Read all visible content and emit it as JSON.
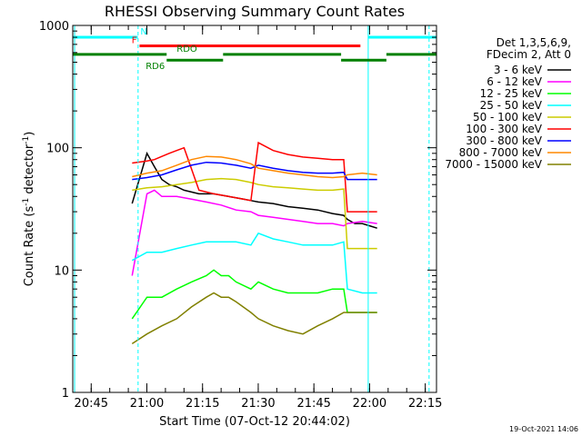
{
  "chart_data": {
    "type": "line",
    "title": "RHESSI Observing Summary Count Rates",
    "xlabel": "Start Time (07-Oct-12 20:44:02)",
    "ylabel_parts": [
      "Count Rate (s",
      "-1",
      " detector",
      "-1",
      ")"
    ],
    "yscale": "log",
    "xlim": [
      -4,
      94
    ],
    "ylim": [
      1,
      1000
    ],
    "x_unit": "minutes since 20:44:02",
    "x_ticks": [
      {
        "t": 0.97,
        "label": "20:45"
      },
      {
        "t": 15.97,
        "label": "21:00"
      },
      {
        "t": 30.97,
        "label": "21:15"
      },
      {
        "t": 45.97,
        "label": "21:30"
      },
      {
        "t": 60.97,
        "label": "21:45"
      },
      {
        "t": 75.97,
        "label": "22:00"
      },
      {
        "t": 90.97,
        "label": "22:15"
      }
    ],
    "y_ticks": [
      {
        "v": 1,
        "label": "1"
      },
      {
        "v": 10,
        "label": "10"
      },
      {
        "v": 100,
        "label": "100"
      },
      {
        "v": 1000,
        "label": "1000"
      }
    ],
    "legend_header": [
      "Det 1,3,5,6,9,",
      "FDecim 2, Att 0"
    ],
    "legend_position": "right",
    "series": [
      {
        "name": "3 - 6 keV",
        "color": "#000000",
        "x": [
          12,
          16,
          18,
          20,
          22,
          24,
          26,
          30,
          34,
          38,
          42,
          44,
          46,
          50,
          54,
          58,
          62,
          66,
          69,
          70,
          72,
          74,
          76,
          78
        ],
        "y": [
          35,
          90,
          70,
          55,
          50,
          48,
          45,
          42,
          42,
          40,
          38,
          37,
          36,
          35,
          33,
          32,
          31,
          29,
          28,
          26,
          24,
          24,
          23,
          22
        ]
      },
      {
        "name": "6 - 12 keV",
        "color": "#ff00ff",
        "x": [
          12,
          16,
          18,
          20,
          24,
          28,
          32,
          36,
          40,
          44,
          46,
          50,
          54,
          58,
          62,
          66,
          69,
          70,
          74,
          78
        ],
        "y": [
          9,
          42,
          45,
          40,
          40,
          38,
          36,
          34,
          31,
          30,
          28,
          27,
          26,
          25,
          24,
          24,
          23,
          24,
          25,
          24
        ]
      },
      {
        "name": "12 - 25 keV",
        "color": "#00ff00",
        "x": [
          12,
          16,
          20,
          24,
          28,
          32,
          34,
          36,
          38,
          40,
          44,
          46,
          50,
          54,
          58,
          62,
          66,
          69,
          70,
          74,
          78
        ],
        "y": [
          4,
          6,
          6,
          7,
          8,
          9,
          10,
          9,
          9,
          8,
          7,
          8,
          7,
          6.5,
          6.5,
          6.5,
          7,
          7,
          4.5,
          4.5,
          4.5
        ]
      },
      {
        "name": "25 - 50 keV",
        "color": "#00ffff",
        "x": [
          12,
          16,
          20,
          24,
          28,
          32,
          36,
          40,
          44,
          46,
          50,
          54,
          58,
          62,
          66,
          69,
          70,
          74,
          78
        ],
        "y": [
          12,
          14,
          14,
          15,
          16,
          17,
          17,
          17,
          16,
          20,
          18,
          17,
          16,
          16,
          16,
          17,
          7,
          6.5,
          6.5
        ]
      },
      {
        "name": "50 - 100 keV",
        "color": "#cccc00",
        "x": [
          12,
          16,
          20,
          24,
          28,
          32,
          36,
          40,
          44,
          46,
          50,
          54,
          58,
          62,
          66,
          69,
          70,
          74,
          78
        ],
        "y": [
          45,
          47,
          48,
          50,
          52,
          55,
          56,
          55,
          52,
          50,
          48,
          47,
          46,
          45,
          45,
          46,
          15,
          15,
          15
        ]
      },
      {
        "name": "100 - 300 keV",
        "color": "#ff0000",
        "x": [
          12,
          16,
          18,
          20,
          22,
          24,
          26,
          30,
          34,
          38,
          42,
          44,
          46,
          50,
          54,
          58,
          62,
          66,
          69,
          70,
          74,
          78
        ],
        "y": [
          75,
          78,
          80,
          85,
          90,
          95,
          100,
          45,
          42,
          40,
          38,
          37,
          110,
          95,
          88,
          84,
          82,
          80,
          80,
          30,
          30,
          30
        ]
      },
      {
        "name": "300 - 800 keV",
        "color": "#0000ff",
        "x": [
          12,
          16,
          20,
          24,
          28,
          32,
          36,
          40,
          44,
          46,
          50,
          54,
          58,
          62,
          66,
          69,
          70,
          74,
          78
        ],
        "y": [
          55,
          57,
          60,
          66,
          72,
          76,
          75,
          72,
          68,
          72,
          68,
          65,
          63,
          62,
          62,
          63,
          55,
          55,
          55
        ]
      },
      {
        "name": "800 - 7000 keV",
        "color": "#ff8800",
        "x": [
          12,
          16,
          20,
          24,
          28,
          32,
          36,
          40,
          44,
          46,
          50,
          54,
          58,
          62,
          66,
          69,
          70,
          74,
          78
        ],
        "y": [
          58,
          62,
          65,
          72,
          80,
          85,
          84,
          80,
          74,
          68,
          65,
          62,
          60,
          58,
          57,
          58,
          60,
          62,
          60
        ]
      },
      {
        "name": "7000 - 15000 keV",
        "color": "#808000",
        "x": [
          12,
          16,
          20,
          24,
          28,
          32,
          34,
          36,
          38,
          40,
          44,
          46,
          50,
          54,
          58,
          62,
          66,
          69,
          70,
          74,
          78
        ],
        "y": [
          2.5,
          3,
          3.5,
          4,
          5,
          6,
          6.5,
          6,
          6,
          5.5,
          4.5,
          4,
          3.5,
          3.2,
          3,
          3.5,
          4,
          4.5,
          4.5,
          4.5,
          4.5
        ]
      }
    ],
    "annotations": [
      {
        "label": "N",
        "color": "#00ffff",
        "y": 800,
        "segments": [
          [
            -4,
            13.5
          ],
          [
            75.5,
            94
          ]
        ]
      },
      {
        "label": "F",
        "color": "#ff0000",
        "y": 680,
        "segments": [
          [
            14,
            73.5
          ]
        ]
      },
      {
        "label": "RDO",
        "color": "#008000",
        "y": 580,
        "segments": [
          [
            -4,
            21.3
          ],
          [
            36.5,
            68.3
          ],
          [
            80.5,
            94
          ]
        ]
      },
      {
        "label": "RD6",
        "color": "#008000",
        "y": 520,
        "segments": [
          [
            21.3,
            36.5
          ],
          [
            68.3,
            80.5
          ]
        ]
      }
    ],
    "vertical_lines": [
      {
        "t": -3.5,
        "color": "#00ffff",
        "style": "solid"
      },
      {
        "t": 13.6,
        "color": "#00ffff",
        "style": "dashed"
      },
      {
        "t": 75.6,
        "color": "#00ffff",
        "style": "solid"
      },
      {
        "t": 92.0,
        "color": "#00ffff",
        "style": "dashed"
      }
    ],
    "timestamp": "19-Oct-2021 14:06"
  }
}
